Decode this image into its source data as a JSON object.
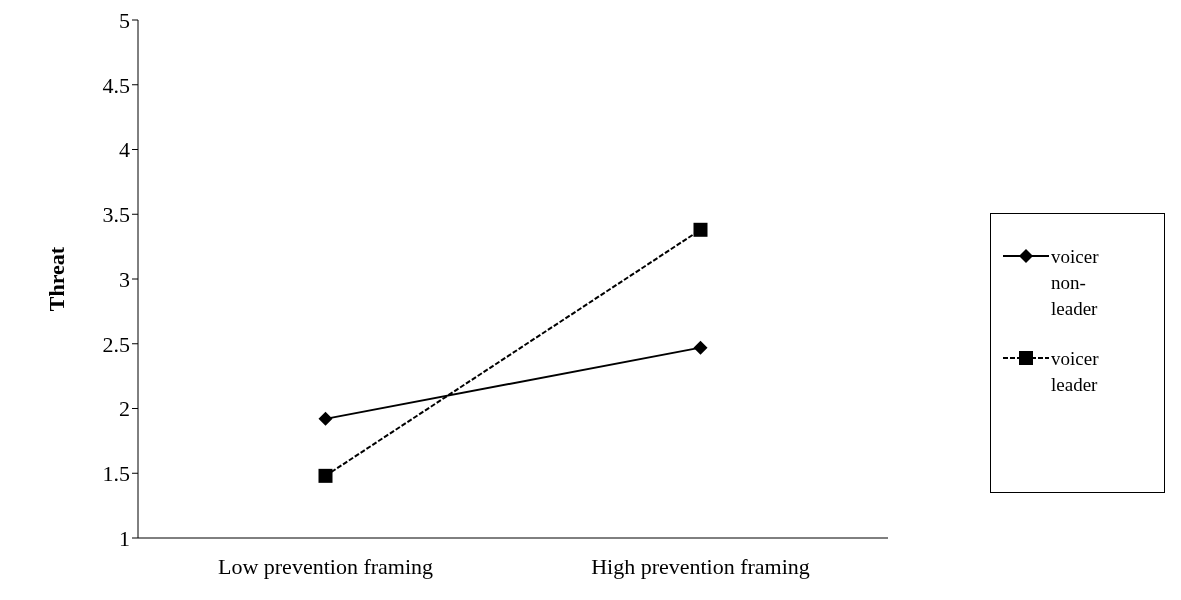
{
  "chart_data": {
    "type": "line",
    "ylabel": "Threat",
    "categories": [
      "Low prevention framing",
      "High prevention framing"
    ],
    "series": [
      {
        "name": "voicer non-leader",
        "color": "#000000",
        "values": [
          1.92,
          2.47
        ],
        "marker": "diamond",
        "line_style": "solid"
      },
      {
        "name": "voicer leader",
        "color": "#000000",
        "values": [
          1.48,
          3.38
        ],
        "marker": "square",
        "line_style": "dashed"
      }
    ],
    "ylim": [
      1,
      5
    ],
    "yticks": [
      1,
      1.5,
      2,
      2.5,
      3,
      3.5,
      4,
      4.5,
      5
    ],
    "grid": false,
    "legend": "right"
  }
}
